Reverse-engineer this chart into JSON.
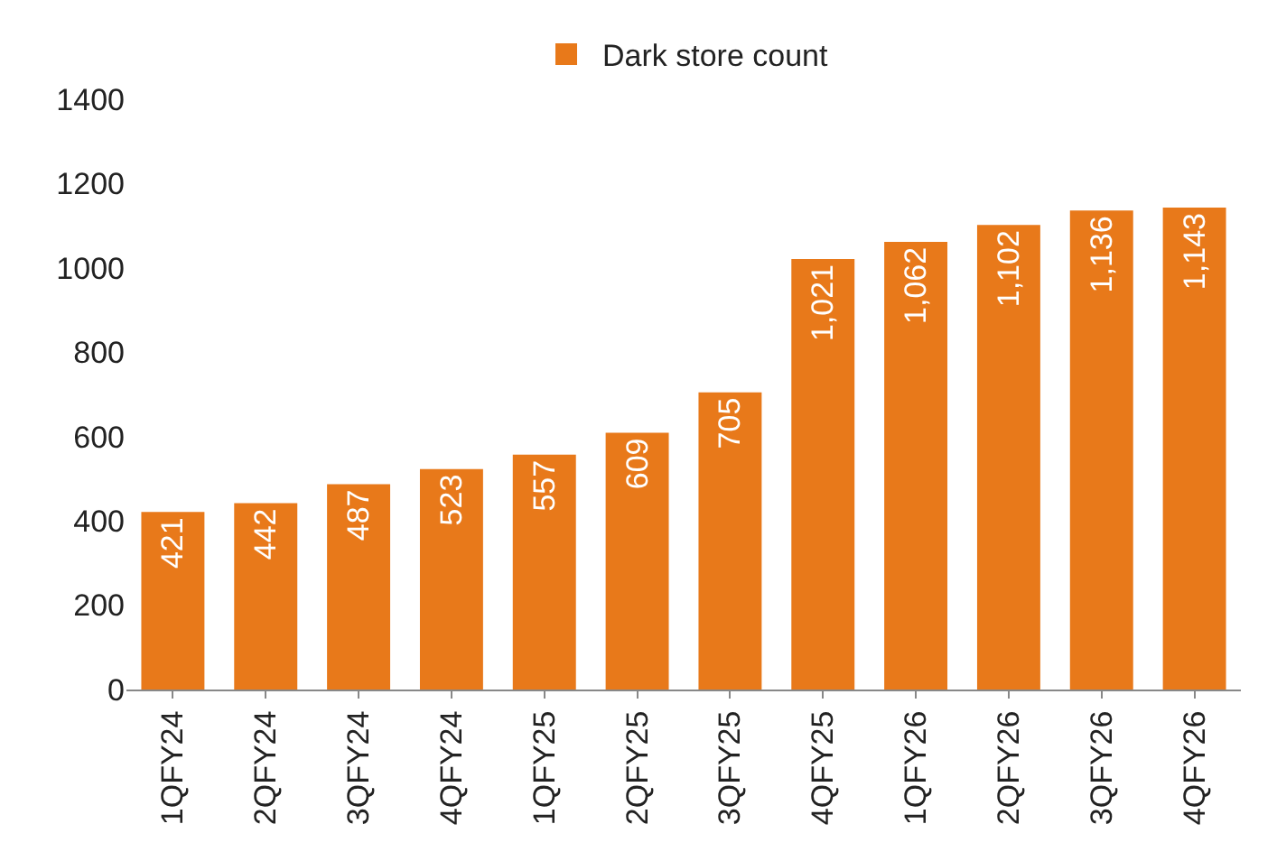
{
  "chart_data": {
    "type": "bar",
    "categories": [
      "1QFY24",
      "2QFY24",
      "3QFY24",
      "4QFY24",
      "1QFY25",
      "2QFY25",
      "3QFY25",
      "4QFY25",
      "1QFY26",
      "2QFY26",
      "3QFY26",
      "4QFY26"
    ],
    "series": [
      {
        "name": "Dark store count",
        "color": "#e8791a",
        "values": [
          421,
          442,
          487,
          523,
          557,
          609,
          705,
          1021,
          1062,
          1102,
          1136,
          1143
        ],
        "value_labels": [
          "421",
          "442",
          "487",
          "523",
          "557",
          "609",
          "705",
          "1,021",
          "1,062",
          "1,102",
          "1,136",
          "1,143"
        ]
      }
    ],
    "ylim": [
      0,
      1400
    ],
    "yticks": [
      0,
      200,
      400,
      600,
      800,
      1000,
      1200,
      1400
    ],
    "grid": false,
    "legend": "top"
  }
}
